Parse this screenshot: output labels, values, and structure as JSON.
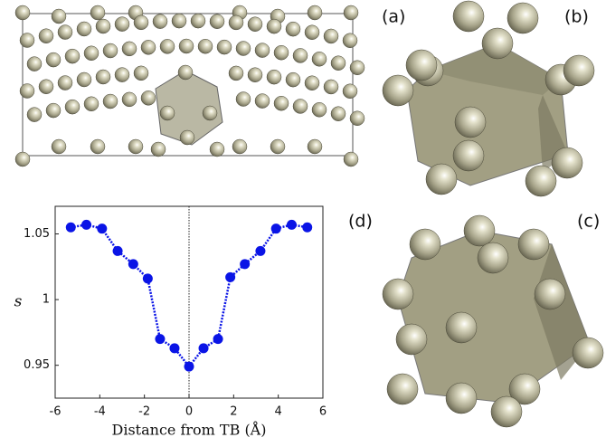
{
  "chart_data": {
    "type": "line",
    "x": [
      -5.3,
      -4.6,
      -3.9,
      -3.2,
      -2.5,
      -1.85,
      -1.3,
      -0.65,
      0,
      0.65,
      1.3,
      1.85,
      2.5,
      3.2,
      3.9,
      4.6,
      5.3
    ],
    "values": [
      1.055,
      1.057,
      1.054,
      1.037,
      1.027,
      1.016,
      0.97,
      0.963,
      0.949,
      0.963,
      0.97,
      1.017,
      1.027,
      1.037,
      1.054,
      1.057,
      1.055
    ],
    "color": "#0a14e6",
    "xlabel": "Distance from TB (Å)",
    "ylabel": "s",
    "xlim": [
      -6,
      6
    ],
    "xticks": [
      -6,
      -4,
      -2,
      0,
      2,
      4,
      6
    ],
    "ylim": [
      0.925,
      1.071
    ],
    "yticks": [
      0.95,
      1,
      1.05
    ],
    "vline": 0,
    "panel_labels": [
      "(a)",
      "(b)",
      "(c)",
      "(d)"
    ]
  }
}
